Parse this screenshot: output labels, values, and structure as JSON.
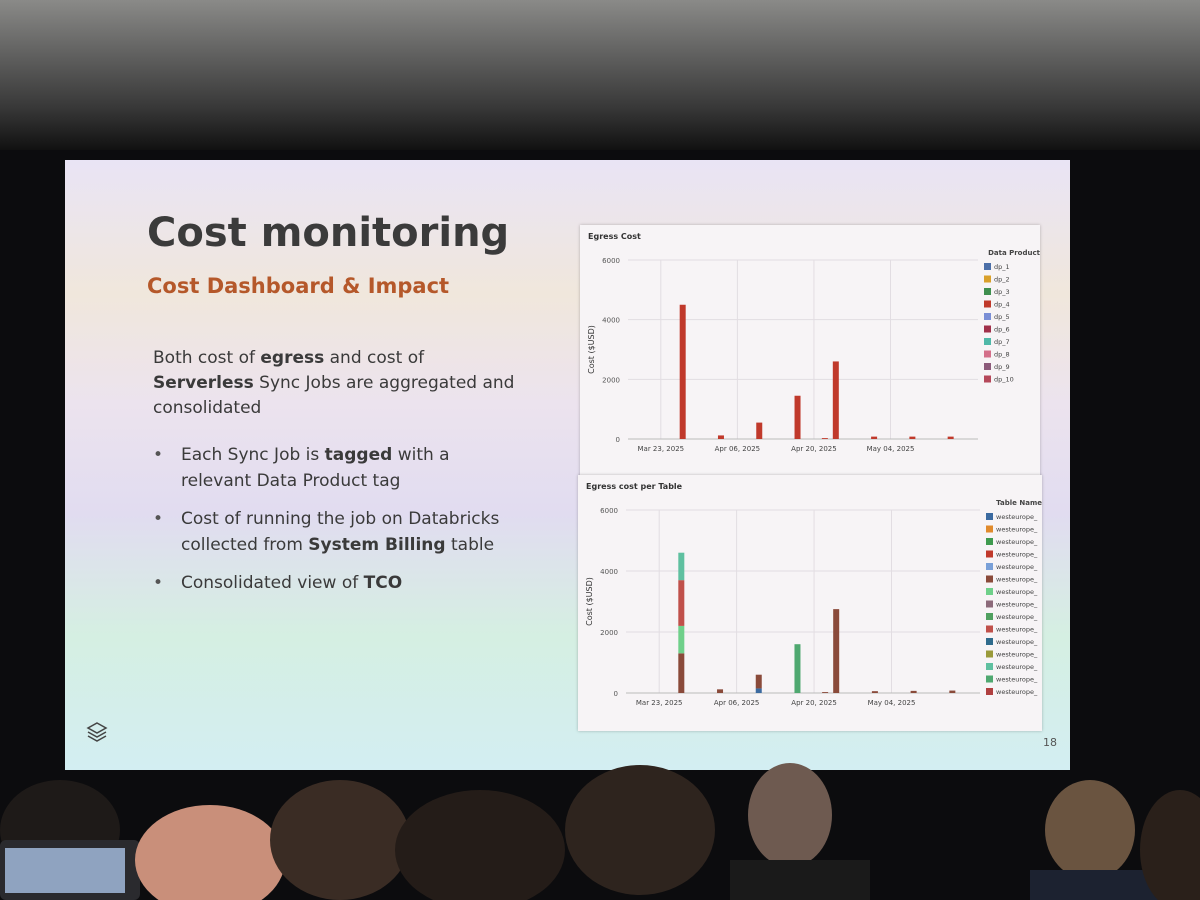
{
  "slide": {
    "title": "Cost monitoring",
    "subtitle": "Cost Dashboard & Impact",
    "body": [
      {
        "text": "Both cost of "
      },
      {
        "text": "egress",
        "bold": true
      },
      {
        "text": " and cost of "
      },
      {
        "text": "Serverless",
        "bold": true
      },
      {
        "text": " Sync Jobs are aggregated and consolidated"
      }
    ],
    "bullets": [
      [
        {
          "text": "Each Sync Job is "
        },
        {
          "text": "tagged",
          "bold": true
        },
        {
          "text": " with a relevant Data Product tag"
        }
      ],
      [
        {
          "text": "Cost of running the job on Databricks collected from "
        },
        {
          "text": "System Billing",
          "bold": true
        },
        {
          "text": " table"
        }
      ],
      [
        {
          "text": "Consolidated view of "
        },
        {
          "text": "TCO",
          "bold": true
        }
      ]
    ],
    "page_number": "18"
  },
  "chart_data": [
    {
      "type": "bar",
      "stacked": true,
      "grid": true,
      "title": "Egress Cost",
      "y_label": "Cost ($USD)",
      "legend_title": "Data Product",
      "x": [
        "2025-03-27",
        "2025-04-03",
        "2025-04-10",
        "2025-04-17",
        "2025-04-22",
        "2025-04-24",
        "2025-05-01",
        "2025-05-08",
        "2025-05-15"
      ],
      "xlim": [
        "2025-03-17",
        "2025-05-20"
      ],
      "xticks": [
        {
          "value": "2025-03-23",
          "label": "Mar 23, 2025"
        },
        {
          "value": "2025-04-06",
          "label": "Apr 06, 2025"
        },
        {
          "value": "2025-04-20",
          "label": "Apr 20, 2025"
        },
        {
          "value": "2025-05-04",
          "label": "May 04, 2025"
        }
      ],
      "ylim": [
        0,
        6000
      ],
      "yticks": [
        0,
        2000,
        4000,
        6000
      ],
      "series": [
        {
          "name": "dp_1",
          "color": "#4c6fa8",
          "values": [
            0,
            0,
            0,
            0,
            0,
            0,
            0,
            0,
            0
          ]
        },
        {
          "name": "dp_2",
          "color": "#d9a02b",
          "values": [
            0,
            0,
            0,
            0,
            0,
            0,
            0,
            0,
            0
          ]
        },
        {
          "name": "dp_3",
          "color": "#3f8f4f",
          "values": [
            0,
            0,
            0,
            0,
            0,
            0,
            0,
            0,
            0
          ]
        },
        {
          "name": "dp_4",
          "color": "#c0392b",
          "values": [
            4500,
            120,
            550,
            1450,
            30,
            2600,
            80,
            80,
            80
          ]
        },
        {
          "name": "dp_5",
          "color": "#7b8fd6",
          "values": [
            0,
            0,
            0,
            0,
            0,
            0,
            0,
            0,
            0
          ]
        },
        {
          "name": "dp_6",
          "color": "#a0304a",
          "values": [
            0,
            0,
            0,
            0,
            0,
            0,
            0,
            0,
            0
          ]
        },
        {
          "name": "dp_7",
          "color": "#4fb8a8",
          "values": [
            0,
            0,
            0,
            0,
            0,
            0,
            0,
            0,
            0
          ]
        },
        {
          "name": "dp_8",
          "color": "#d46f8a",
          "values": [
            0,
            0,
            0,
            0,
            0,
            0,
            0,
            0,
            0
          ]
        },
        {
          "name": "dp_9",
          "color": "#8c5a7a",
          "values": [
            0,
            0,
            0,
            0,
            0,
            0,
            0,
            0,
            0
          ]
        },
        {
          "name": "dp_10",
          "color": "#b5485a",
          "values": [
            0,
            0,
            0,
            0,
            0,
            0,
            0,
            0,
            0
          ]
        }
      ]
    },
    {
      "type": "bar",
      "stacked": true,
      "grid": true,
      "title": "Egress cost per Table",
      "y_label": "Cost ($USD)",
      "legend_title": "Table Name",
      "x": [
        "2025-03-27",
        "2025-04-03",
        "2025-04-10",
        "2025-04-17",
        "2025-04-22",
        "2025-04-24",
        "2025-05-01",
        "2025-05-08",
        "2025-05-15"
      ],
      "xlim": [
        "2025-03-17",
        "2025-05-20"
      ],
      "xticks": [
        {
          "value": "2025-03-23",
          "label": "Mar 23, 2025"
        },
        {
          "value": "2025-04-06",
          "label": "Apr 06, 2025"
        },
        {
          "value": "2025-04-20",
          "label": "Apr 20, 2025"
        },
        {
          "value": "2025-05-04",
          "label": "May 04, 2025"
        }
      ],
      "ylim": [
        0,
        6000
      ],
      "yticks": [
        0,
        2000,
        4000,
        6000
      ],
      "series": [
        {
          "name": "westeurope_",
          "color": "#3b6aa0",
          "values": [
            0,
            0,
            150,
            0,
            0,
            0,
            0,
            0,
            0
          ]
        },
        {
          "name": "westeurope_",
          "color": "#e08a2c",
          "values": [
            0,
            0,
            0,
            0,
            0,
            0,
            0,
            0,
            0
          ]
        },
        {
          "name": "westeurope_",
          "color": "#3f9a4f",
          "values": [
            0,
            0,
            0,
            0,
            0,
            0,
            0,
            0,
            0
          ]
        },
        {
          "name": "westeurope_",
          "color": "#c0392b",
          "values": [
            0,
            0,
            0,
            0,
            0,
            0,
            0,
            0,
            0
          ]
        },
        {
          "name": "westeurope_",
          "color": "#7aa0d8",
          "values": [
            0,
            0,
            0,
            0,
            0,
            0,
            0,
            0,
            0
          ]
        },
        {
          "name": "westeurope_",
          "color": "#8a4a3a",
          "values": [
            1300,
            120,
            450,
            0,
            30,
            2750,
            60,
            70,
            80
          ]
        },
        {
          "name": "westeurope_",
          "color": "#6fd08a",
          "values": [
            900,
            0,
            0,
            0,
            0,
            0,
            0,
            0,
            0
          ]
        },
        {
          "name": "westeurope_",
          "color": "#8c6a7a",
          "values": [
            0,
            0,
            0,
            0,
            0,
            0,
            0,
            0,
            0
          ]
        },
        {
          "name": "westeurope_",
          "color": "#50a060",
          "values": [
            0,
            0,
            0,
            0,
            0,
            0,
            0,
            0,
            0
          ]
        },
        {
          "name": "westeurope_",
          "color": "#c0504a",
          "values": [
            1500,
            0,
            0,
            0,
            0,
            0,
            0,
            0,
            0
          ]
        },
        {
          "name": "westeurope_",
          "color": "#2f6b8c",
          "values": [
            0,
            0,
            0,
            0,
            0,
            0,
            0,
            0,
            0
          ]
        },
        {
          "name": "westeurope_",
          "color": "#9a9a3a",
          "values": [
            0,
            0,
            0,
            0,
            0,
            0,
            0,
            0,
            0
          ]
        },
        {
          "name": "westeurope_",
          "color": "#5fc0a0",
          "values": [
            900,
            0,
            0,
            0,
            0,
            0,
            0,
            0,
            0
          ]
        },
        {
          "name": "westeurope_",
          "color": "#4fa870",
          "values": [
            0,
            0,
            0,
            1600,
            0,
            0,
            0,
            0,
            0
          ]
        },
        {
          "name": "westeurope_",
          "color": "#b04040",
          "values": [
            0,
            0,
            0,
            0,
            0,
            0,
            0,
            0,
            0
          ]
        }
      ]
    }
  ]
}
